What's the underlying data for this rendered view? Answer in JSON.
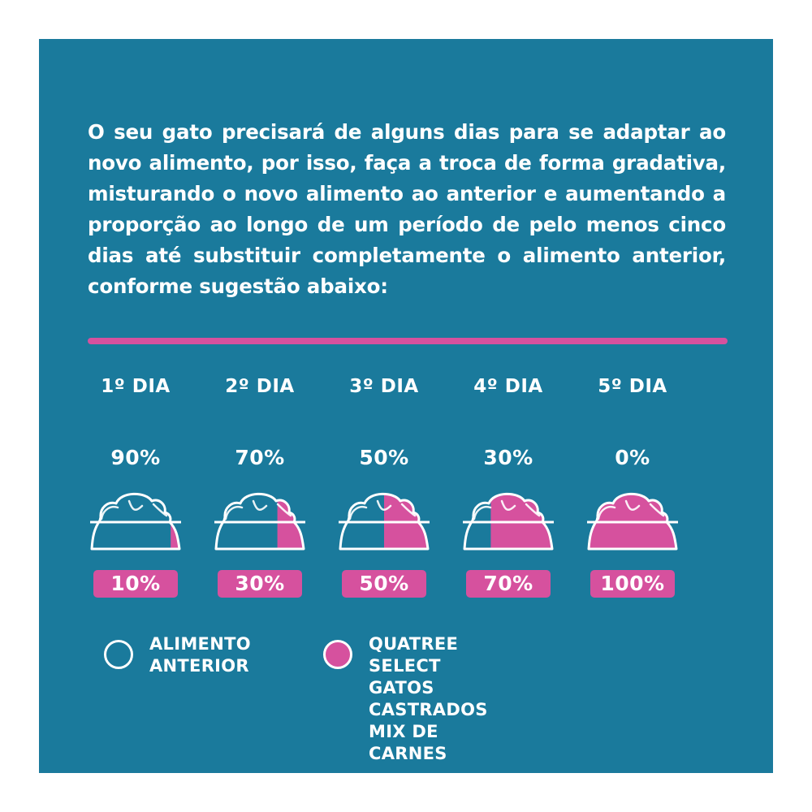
{
  "intro_text": "O seu gato precisará de alguns dias para se adaptar ao novo alimento, por isso, faça a troca de forma gradativa, misturando o novo alimento ao anterior e aumentando a proporção ao longo de um período de pelo menos cinco dias até substituir completamente o alimento anterior, conforme sugestão abaixo:",
  "colors": {
    "background": "#1a7a9c",
    "previous_food": "#1a7a9c",
    "new_food": "#d6519e",
    "text": "#ffffff"
  },
  "days": [
    {
      "label": "1º DIA",
      "previous_pct": "90%",
      "new_pct": "10%",
      "new_fraction": 0.1
    },
    {
      "label": "2º DIA",
      "previous_pct": "70%",
      "new_pct": "30%",
      "new_fraction": 0.3
    },
    {
      "label": "3º DIA",
      "previous_pct": "50%",
      "new_pct": "50%",
      "new_fraction": 0.5
    },
    {
      "label": "4º DIA",
      "previous_pct": "30%",
      "new_pct": "70%",
      "new_fraction": 0.7
    },
    {
      "label": "5º DIA",
      "previous_pct": "0%",
      "new_pct": "100%",
      "new_fraction": 1.0
    }
  ],
  "legend": {
    "previous": {
      "label": "ALIMENTO\nANTERIOR",
      "icon": "teal-circle-icon"
    },
    "new": {
      "label": "QUATREE SELECT GATOS\nCASTRADOS MIX DE CARNES",
      "icon": "pink-circle-icon"
    }
  }
}
